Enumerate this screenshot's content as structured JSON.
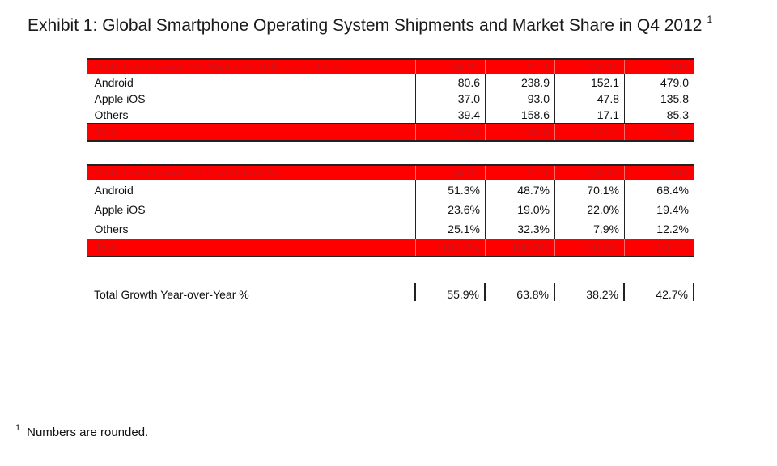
{
  "title": "Exhibit 1: Global Smartphone Operating System Shipments and Market Share in Q4 2012",
  "title_footnote_mark": "1",
  "chart_data": [
    {
      "type": "table",
      "header": [
        "Global Smartphone OS Shipments (Millions of Units)",
        "Q4 '11",
        "2011",
        "Q4 '12",
        "2012"
      ],
      "rows": [
        {
          "label": "Android",
          "values": [
            "80.6",
            "238.9",
            "152.1",
            "479.0"
          ]
        },
        {
          "label": "Apple iOS",
          "values": [
            "37.0",
            "93.0",
            "47.8",
            "135.8"
          ]
        },
        {
          "label": "Others",
          "values": [
            "39.4",
            "158.6",
            "17.1",
            "85.3"
          ]
        }
      ],
      "total": {
        "label": "Total",
        "values": [
          "157.0",
          "490.5",
          "217.0",
          "700.1"
        ]
      }
    },
    {
      "type": "table",
      "header": [
        "Global Smartphone OS Marketshare %",
        "Q4 '11",
        "2011",
        "Q4 '12",
        "2012"
      ],
      "rows": [
        {
          "label": "Android",
          "values": [
            "51.3%",
            "48.7%",
            "70.1%",
            "68.4%"
          ]
        },
        {
          "label": "Apple iOS",
          "values": [
            "23.6%",
            "19.0%",
            "22.0%",
            "19.4%"
          ]
        },
        {
          "label": "Others",
          "values": [
            "25.1%",
            "32.3%",
            "7.9%",
            "12.2%"
          ]
        }
      ],
      "total": {
        "label": "Total",
        "values": [
          "100.0%",
          "100.0%",
          "100.0%",
          "100.0%"
        ]
      }
    }
  ],
  "growth": {
    "label": "Total Growth Year-over-Year %",
    "values": [
      "55.9%",
      "63.8%",
      "38.2%",
      "42.7%"
    ]
  },
  "footnote": {
    "mark": "1",
    "text": "Numbers are rounded."
  },
  "colors": {
    "header_fill": "#ff0000",
    "header_text": "#c9141a"
  }
}
